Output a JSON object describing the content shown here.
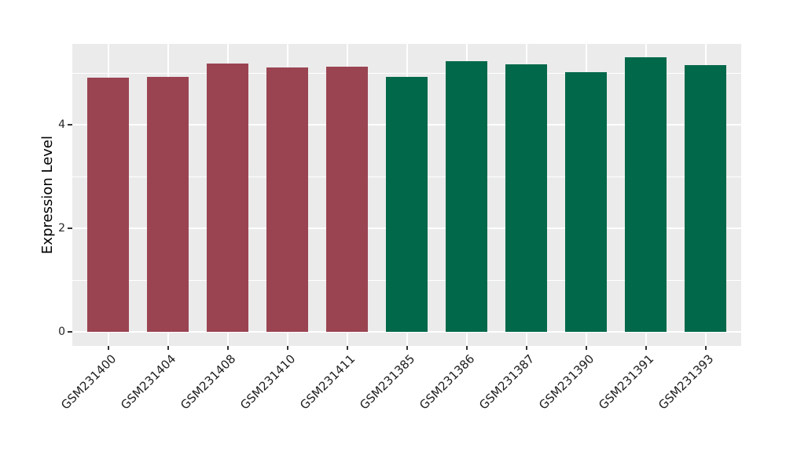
{
  "figure": {
    "background": "#FFFFFF",
    "panel_background": "#EBEBEB",
    "grid_color": "#FFFFFF",
    "tick_mark_color": "#333333",
    "axis_text_color": "#202020",
    "axis_title_color": "#000000",
    "group_colors": {
      "red": "#9A4452",
      "green": "#01684A"
    }
  },
  "chart_data": {
    "type": "bar",
    "title": "",
    "xlabel": "",
    "ylabel": "Expression Level",
    "legend_position": "none",
    "grid": true,
    "ylim": [
      -0.27,
      5.56
    ],
    "y_major_ticks": [
      0,
      2,
      4
    ],
    "y_tick_labels": [
      "0",
      "2",
      "4"
    ],
    "y_minor_gridlines": [
      1,
      3,
      5
    ],
    "categories": [
      "GSM231400",
      "GSM231404",
      "GSM231408",
      "GSM231410",
      "GSM231411",
      "GSM231385",
      "GSM231386",
      "GSM231387",
      "GSM231390",
      "GSM231391",
      "GSM231393"
    ],
    "values": [
      4.91,
      4.92,
      5.18,
      5.11,
      5.12,
      4.92,
      5.22,
      5.17,
      5.02,
      5.3,
      5.15
    ],
    "bar_colors": [
      "#9A4452",
      "#9A4452",
      "#9A4452",
      "#9A4452",
      "#9A4452",
      "#01684A",
      "#01684A",
      "#01684A",
      "#01684A",
      "#01684A",
      "#01684A"
    ]
  }
}
